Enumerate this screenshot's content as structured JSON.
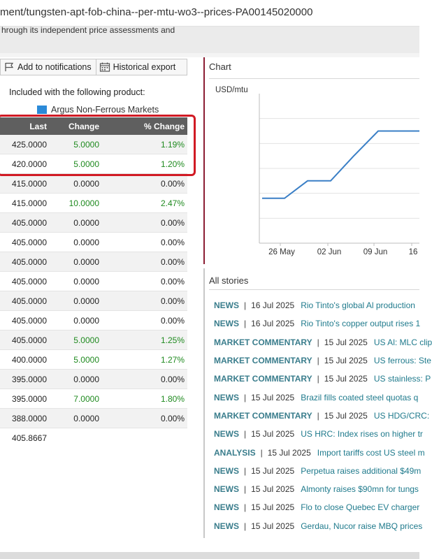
{
  "url": "ment/tungsten-apt-fob-china--per-mtu-wo3--prices-PA00145020000",
  "description": "hrough its independent price assessments and",
  "toolbar": {
    "notify_label": "Add to notifications",
    "export_label": "Historical export"
  },
  "included_label": "Included with the following product:",
  "product_name": "Argus Non-Ferrous Markets",
  "table": {
    "headers": {
      "last": "Last",
      "change": "Change",
      "pct": "% Change"
    },
    "rows": [
      {
        "last": "425.0000",
        "change": "5.0000",
        "pct": "1.19%",
        "up": true
      },
      {
        "last": "420.0000",
        "change": "5.0000",
        "pct": "1.20%",
        "up": true
      },
      {
        "last": "415.0000",
        "change": "0.0000",
        "pct": "0.00%",
        "up": false
      },
      {
        "last": "415.0000",
        "change": "10.0000",
        "pct": "2.47%",
        "up": true
      },
      {
        "last": "405.0000",
        "change": "0.0000",
        "pct": "0.00%",
        "up": false
      },
      {
        "last": "405.0000",
        "change": "0.0000",
        "pct": "0.00%",
        "up": false
      },
      {
        "last": "405.0000",
        "change": "0.0000",
        "pct": "0.00%",
        "up": false
      },
      {
        "last": "405.0000",
        "change": "0.0000",
        "pct": "0.00%",
        "up": false
      },
      {
        "last": "405.0000",
        "change": "0.0000",
        "pct": "0.00%",
        "up": false
      },
      {
        "last": "405.0000",
        "change": "0.0000",
        "pct": "0.00%",
        "up": false
      },
      {
        "last": "405.0000",
        "change": "5.0000",
        "pct": "1.25%",
        "up": true
      },
      {
        "last": "400.0000",
        "change": "5.0000",
        "pct": "1.27%",
        "up": true
      },
      {
        "last": "395.0000",
        "change": "0.0000",
        "pct": "0.00%",
        "up": false
      },
      {
        "last": "395.0000",
        "change": "7.0000",
        "pct": "1.80%",
        "up": true
      },
      {
        "last": "388.0000",
        "change": "0.0000",
        "pct": "0.00%",
        "up": false
      },
      {
        "last": "405.8667",
        "change": "",
        "pct": "",
        "up": false
      }
    ]
  },
  "chart": {
    "title": "Chart",
    "unit": "USD/mtu",
    "x_labels": [
      "26 May",
      "02 Jun",
      "09 Jun",
      "16"
    ],
    "line_color": "#3a7fc6"
  },
  "chart_data": {
    "type": "line",
    "title": "",
    "ylabel": "USD/mtu",
    "xlabel": "",
    "x": [
      "21 May",
      "26 May",
      "28 May",
      "02 Jun",
      "04 Jun",
      "11 Jun",
      "17 Jun"
    ],
    "series": [
      {
        "values": [
          388,
          388,
          395,
          395,
          405,
          415,
          415
        ]
      }
    ],
    "ylim": [
      370,
      430
    ],
    "grid": true
  },
  "stories": {
    "title": "All stories",
    "items": [
      {
        "type": "NEWS",
        "date": "16 Jul 2025",
        "headline": "Rio Tinto's global Al production"
      },
      {
        "type": "NEWS",
        "date": "16 Jul 2025",
        "headline": "Rio Tinto's copper output rises 1"
      },
      {
        "type": "MARKET COMMENTARY",
        "date": "15 Jul 2025",
        "headline": "US Al: MLC clip"
      },
      {
        "type": "MARKET COMMENTARY",
        "date": "15 Jul 2025",
        "headline": "US ferrous: Ste"
      },
      {
        "type": "MARKET COMMENTARY",
        "date": "15 Jul 2025",
        "headline": "US stainless: P"
      },
      {
        "type": "NEWS",
        "date": "15 Jul 2025",
        "headline": "Brazil fills coated steel quotas q"
      },
      {
        "type": "MARKET COMMENTARY",
        "date": "15 Jul 2025",
        "headline": "US HDG/CRC:"
      },
      {
        "type": "NEWS",
        "date": "15 Jul 2025",
        "headline": "US HRC: Index rises on higher tr"
      },
      {
        "type": "ANALYSIS",
        "date": "15 Jul 2025",
        "headline": "Import tariffs cost US steel m"
      },
      {
        "type": "NEWS",
        "date": "15 Jul 2025",
        "headline": "Perpetua raises additional $49m"
      },
      {
        "type": "NEWS",
        "date": "15 Jul 2025",
        "headline": "Almonty raises $90mn for tungs"
      },
      {
        "type": "NEWS",
        "date": "15 Jul 2025",
        "headline": "Flo to close Quebec EV charger"
      },
      {
        "type": "NEWS",
        "date": "15 Jul 2025",
        "headline": "Gerdau, Nucor raise MBQ prices"
      }
    ]
  }
}
